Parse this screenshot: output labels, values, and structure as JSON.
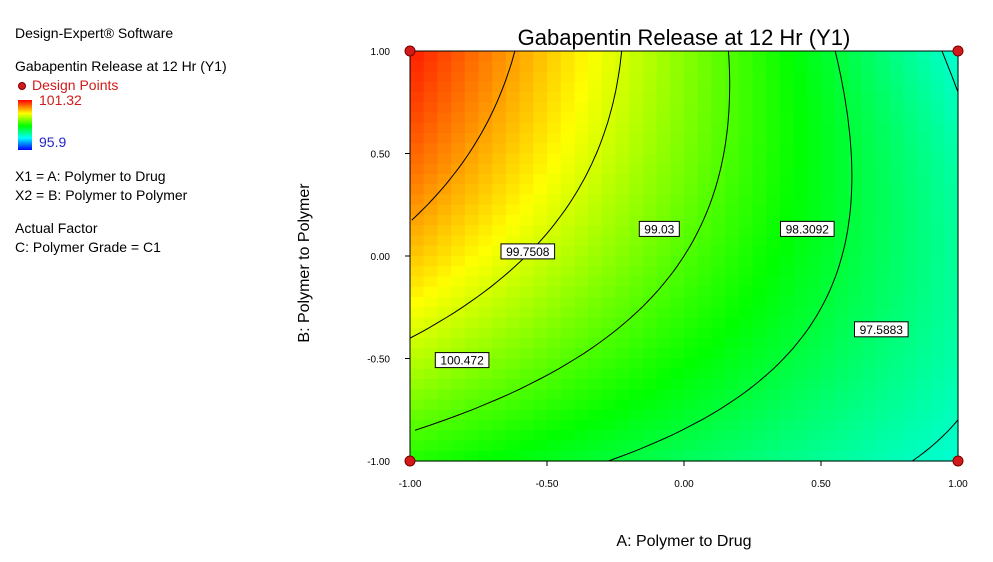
{
  "header": {
    "software": "Design-Expert® Software",
    "response": "Gabapentin Release at 12 Hr (Y1)",
    "design_points_label": "Design Points",
    "color_max": "101.32",
    "color_min": "95.9",
    "x1_def": "X1 = A: Polymer to Drug",
    "x2_def": "X2 = B: Polymer to Polymer",
    "actual_factor_heading": "Actual Factor",
    "actual_factor_value": "C: Polymer Grade = C1"
  },
  "chart_data": {
    "type": "heatmap",
    "subtype": "contour",
    "title": "Gabapentin Release at 12 Hr (Y1)",
    "xlabel": "A: Polymer to Drug",
    "ylabel": "B: Polymer to Polymer",
    "xlim": [
      -1,
      1
    ],
    "ylim": [
      -1,
      1
    ],
    "xticks": [
      "-1.00",
      "-0.50",
      "0.00",
      "0.50",
      "1.00"
    ],
    "yticks": [
      "-1.00",
      "-0.50",
      "0.00",
      "0.50",
      "1.00"
    ],
    "color_range": [
      95.9,
      101.32
    ],
    "colorscale": [
      "#ff0000",
      "#ffff00",
      "#00ff00",
      "#00ffff",
      "#0000ff"
    ],
    "contour_levels": [
      "100.472",
      "99.7508",
      "99.03",
      "98.3092",
      "97.5883"
    ],
    "contour_label_positions": [
      {
        "label": "100.472",
        "x": -0.81,
        "y": -0.51
      },
      {
        "label": "99.7508",
        "x": -0.57,
        "y": 0.02
      },
      {
        "label": "99.03",
        "x": -0.09,
        "y": 0.13
      },
      {
        "label": "98.3092",
        "x": 0.45,
        "y": 0.13
      },
      {
        "label": "97.5883",
        "x": 0.72,
        "y": -0.36
      }
    ],
    "design_points": [
      {
        "x": -1,
        "y": -1
      },
      {
        "x": -1,
        "y": 1
      },
      {
        "x": 1,
        "y": -1
      },
      {
        "x": 1,
        "y": 1
      }
    ]
  }
}
